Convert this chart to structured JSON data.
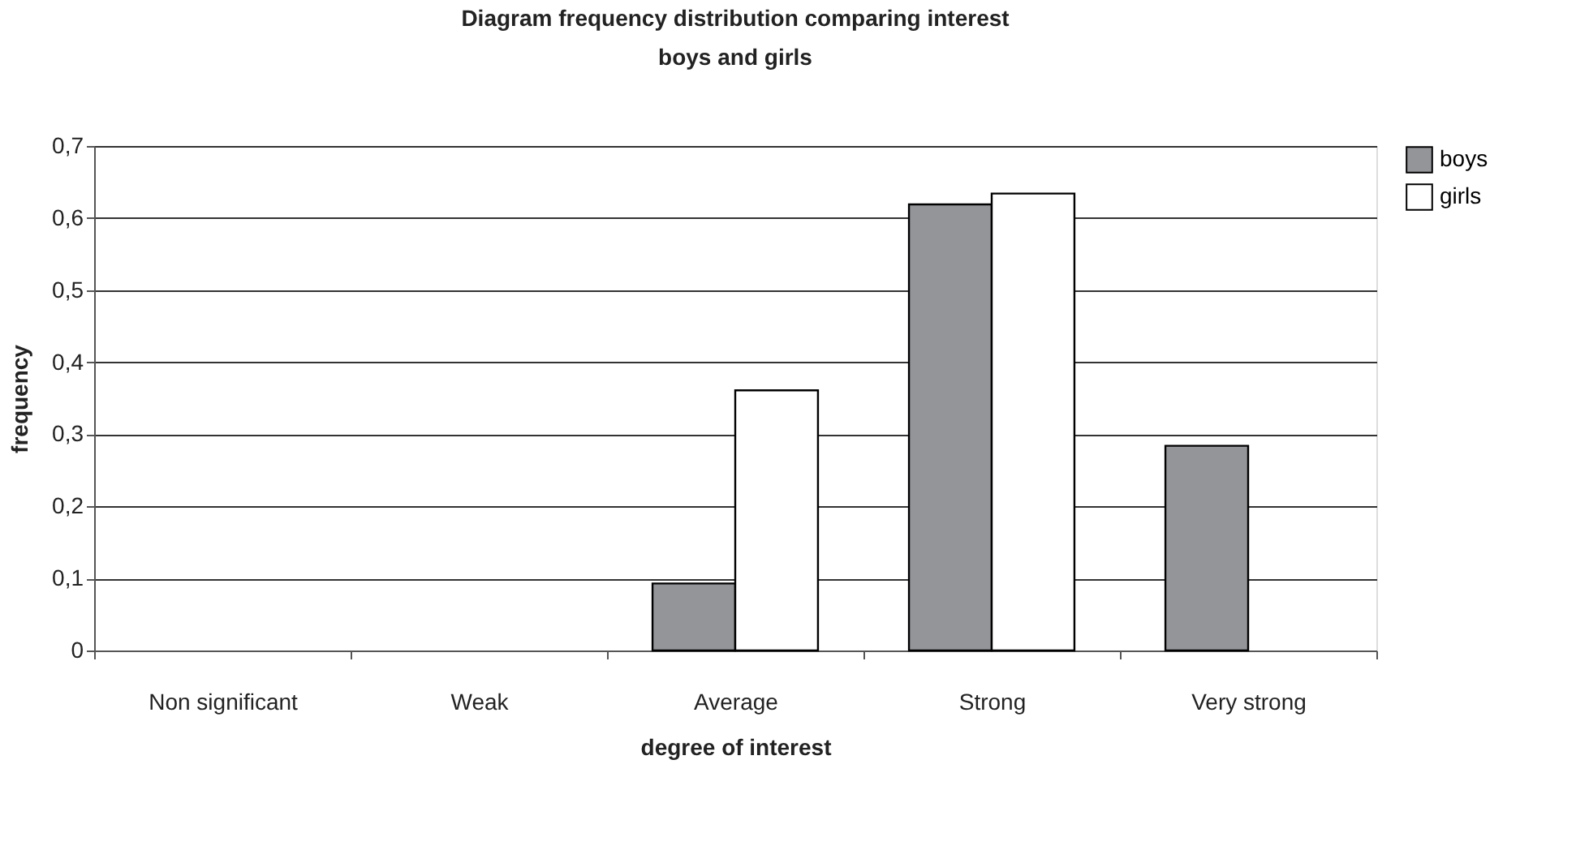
{
  "chart_data": {
    "type": "bar",
    "title": "Diagram  frequency distribution comparing interest",
    "subtitle": "boys and girls",
    "xlabel": "degree of interest",
    "ylabel": "frequency",
    "categories": [
      "Non significant",
      "Weak",
      "Average",
      "Strong",
      "Very strong"
    ],
    "series": [
      {
        "name": "boys",
        "color": "#939598",
        "values": [
          null,
          null,
          0.093,
          0.619,
          0.284
        ]
      },
      {
        "name": "girls",
        "color": "#ffffff",
        "values": [
          null,
          null,
          0.361,
          0.634,
          null
        ]
      }
    ],
    "ylim": [
      0,
      0.7
    ],
    "yticks": [
      0,
      {
        "value": 0.1,
        "label": "0,1"
      },
      {
        "value": 0.2,
        "label": "0,2"
      },
      {
        "value": 0.3,
        "label": "0,3"
      },
      {
        "value": 0.4,
        "label": "0,4"
      },
      {
        "value": 0.5,
        "label": "0,5"
      },
      {
        "value": 0.6,
        "label": "0,6"
      },
      {
        "value": 0.7,
        "label": "0,7"
      }
    ],
    "grid": "y",
    "legend": "right"
  }
}
